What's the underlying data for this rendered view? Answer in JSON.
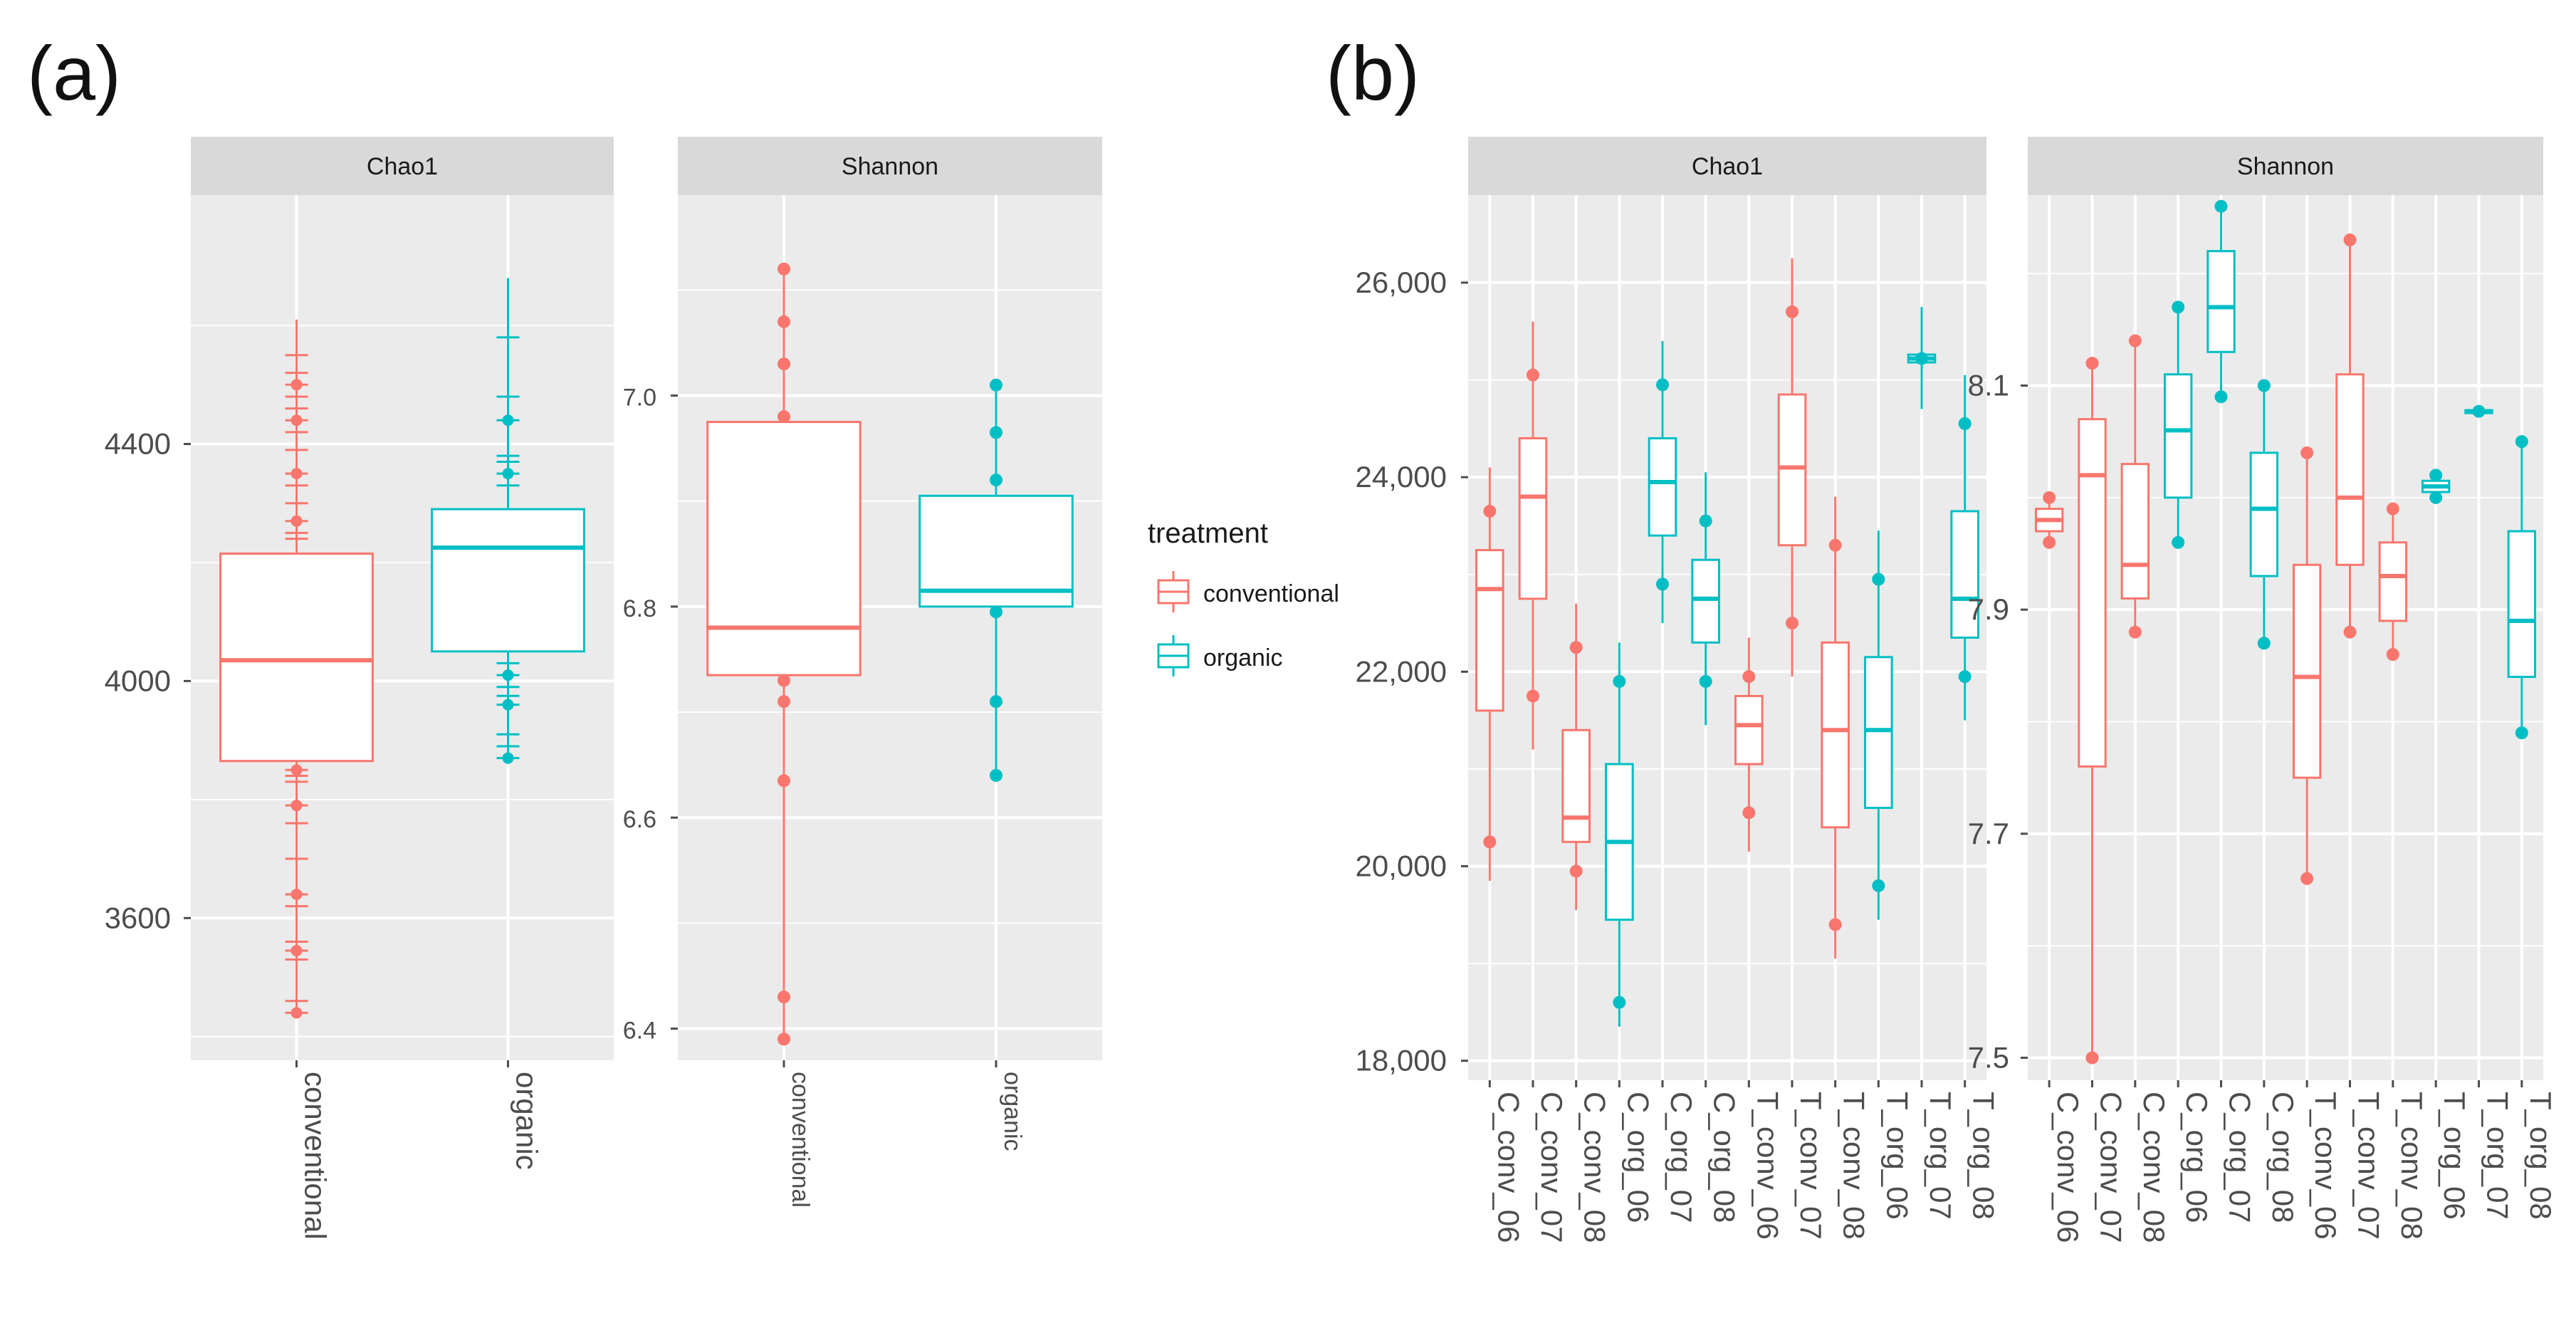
{
  "colors": {
    "conventional": "#f8766d",
    "organic": "#00bfc4",
    "panel_bg": "#ebebeb",
    "strip_bg": "#d9d9d9",
    "grid": "#ffffff"
  },
  "legend": {
    "title": "treatment",
    "items": [
      "conventional",
      "organic"
    ]
  },
  "chart_data": [
    {
      "panel": "(a)",
      "facet": "Chao1",
      "type": "boxplot",
      "categories": [
        "conventional",
        "organic"
      ],
      "ylim": [
        3360,
        4820
      ],
      "yticks": [
        3600,
        4000,
        4400
      ],
      "ytick_labels": [
        "3600",
        "4000",
        "4400"
      ],
      "boxes": [
        {
          "label": "conventional",
          "group": "conventional",
          "min": 3440,
          "q1": 3865,
          "median": 4035,
          "q3": 4215,
          "max": 4610,
          "points": [
            3440,
            3460,
            3530,
            3545,
            3560,
            3620,
            3640,
            3700,
            3760,
            3790,
            3830,
            3840,
            3850,
            4240,
            4250,
            4270,
            4300,
            4330,
            4350,
            4390,
            4420,
            4440,
            4460,
            4480,
            4500,
            4520,
            4550
          ]
        },
        {
          "label": "organic",
          "group": "organic",
          "min": 3860,
          "q1": 4050,
          "median": 4225,
          "q3": 4290,
          "max": 4680,
          "points": [
            3870,
            3890,
            3910,
            3960,
            3975,
            3990,
            4010,
            4030,
            4330,
            4350,
            4370,
            4380,
            4440,
            4480,
            4580
          ]
        }
      ]
    },
    {
      "panel": "(a)",
      "facet": "Shannon",
      "type": "boxplot",
      "categories": [
        "conventional",
        "organic"
      ],
      "ylim": [
        6.37,
        7.19
      ],
      "yticks": [
        6.4,
        6.6,
        6.8,
        7.0
      ],
      "ytick_labels": [
        "6.4",
        "6.6",
        "6.8",
        "7.0"
      ],
      "boxes": [
        {
          "label": "conventional",
          "group": "conventional",
          "min": 6.39,
          "q1": 6.735,
          "median": 6.78,
          "q3": 6.975,
          "max": 7.12,
          "points": [
            6.39,
            6.43,
            6.635,
            6.71,
            6.73,
            6.98,
            7.03,
            7.07,
            7.12
          ]
        },
        {
          "label": "organic",
          "group": "organic",
          "min": 6.64,
          "q1": 6.8,
          "median": 6.815,
          "q3": 6.905,
          "max": 7.01,
          "points": [
            6.64,
            6.71,
            6.795,
            6.92,
            6.965,
            7.01
          ]
        }
      ]
    },
    {
      "panel": "(b)",
      "facet": "Chao1",
      "type": "boxplot",
      "categories": [
        "C_conv_06",
        "C_conv_07",
        "C_conv_08",
        "C_org_06",
        "C_org_07",
        "C_org_08",
        "T_conv_06",
        "T_conv_07",
        "T_conv_08",
        "T_org_06",
        "T_org_07",
        "T_org_08"
      ],
      "ylim": [
        17800,
        26900
      ],
      "yticks": [
        18000,
        20000,
        22000,
        24000,
        26000
      ],
      "ytick_labels": [
        "18,000",
        "20,000",
        "22,000",
        "24,000",
        "26,000"
      ],
      "boxes": [
        {
          "label": "C_conv_06",
          "group": "conventional",
          "min": 19850,
          "q1": 21600,
          "median": 22850,
          "q3": 23250,
          "max": 24100,
          "points": [
            20250,
            23650
          ]
        },
        {
          "label": "C_conv_07",
          "group": "conventional",
          "min": 21200,
          "q1": 22750,
          "median": 23800,
          "q3": 24400,
          "max": 25600,
          "points": [
            21750,
            25050
          ]
        },
        {
          "label": "C_conv_08",
          "group": "conventional",
          "min": 19550,
          "q1": 20250,
          "median": 20500,
          "q3": 21400,
          "max": 22700,
          "points": [
            19950,
            22250
          ]
        },
        {
          "label": "C_org_06",
          "group": "organic",
          "min": 18350,
          "q1": 19450,
          "median": 20250,
          "q3": 21050,
          "max": 22300,
          "points": [
            18600,
            21900
          ]
        },
        {
          "label": "C_org_07",
          "group": "organic",
          "min": 22500,
          "q1": 23400,
          "median": 23950,
          "q3": 24400,
          "max": 25400,
          "points": [
            22900,
            24950
          ]
        },
        {
          "label": "C_org_08",
          "group": "organic",
          "min": 21450,
          "q1": 22300,
          "median": 22750,
          "q3": 23150,
          "max": 24050,
          "points": [
            21900,
            23550
          ]
        },
        {
          "label": "T_conv_06",
          "group": "conventional",
          "min": 20150,
          "q1": 21050,
          "median": 21450,
          "q3": 21750,
          "max": 22350,
          "points": [
            20550,
            21950
          ]
        },
        {
          "label": "T_conv_07",
          "group": "conventional",
          "min": 21950,
          "q1": 23300,
          "median": 24100,
          "q3": 24850,
          "max": 26250,
          "points": [
            22500,
            25700
          ]
        },
        {
          "label": "T_conv_08",
          "group": "conventional",
          "min": 19050,
          "q1": 20400,
          "median": 21400,
          "q3": 22300,
          "max": 23800,
          "points": [
            19400,
            23300
          ]
        },
        {
          "label": "T_org_06",
          "group": "organic",
          "min": 19450,
          "q1": 20600,
          "median": 21400,
          "q3": 22150,
          "max": 23450,
          "points": [
            19800,
            22950
          ]
        },
        {
          "label": "T_org_07",
          "group": "organic",
          "min": 24700,
          "q1": 25180,
          "median": 25220,
          "q3": 25260,
          "max": 25750,
          "points": [
            25220
          ]
        },
        {
          "label": "T_org_08",
          "group": "organic",
          "min": 21500,
          "q1": 22350,
          "median": 22750,
          "q3": 23650,
          "max": 25050,
          "points": [
            21950,
            24550
          ]
        }
      ]
    },
    {
      "panel": "(b)",
      "facet": "Shannon",
      "type": "boxplot",
      "categories": [
        "C_conv_06",
        "C_conv_07",
        "C_conv_08",
        "C_org_06",
        "C_org_07",
        "C_org_08",
        "T_conv_06",
        "T_conv_07",
        "T_conv_08",
        "T_org_06",
        "T_org_07",
        "T_org_08"
      ],
      "ylim": [
        7.48,
        8.27
      ],
      "yticks": [
        7.5,
        7.7,
        7.9,
        8.1
      ],
      "ytick_labels": [
        "7.5",
        "7.7",
        "7.9",
        "8.1"
      ],
      "boxes": [
        {
          "label": "C_conv_06",
          "group": "conventional",
          "min": 7.96,
          "q1": 7.97,
          "median": 7.98,
          "q3": 7.99,
          "max": 8.0,
          "points": [
            7.96,
            8.0
          ]
        },
        {
          "label": "C_conv_07",
          "group": "conventional",
          "min": 7.5,
          "q1": 7.76,
          "median": 8.02,
          "q3": 8.07,
          "max": 8.12,
          "points": [
            7.5,
            8.12
          ]
        },
        {
          "label": "C_conv_08",
          "group": "conventional",
          "min": 7.88,
          "q1": 7.91,
          "median": 7.94,
          "q3": 8.03,
          "max": 8.14,
          "points": [
            7.88,
            8.14
          ]
        },
        {
          "label": "C_org_06",
          "group": "organic",
          "min": 7.96,
          "q1": 8.0,
          "median": 8.06,
          "q3": 8.11,
          "max": 8.17,
          "points": [
            7.96,
            8.17
          ]
        },
        {
          "label": "C_org_07",
          "group": "organic",
          "min": 8.09,
          "q1": 8.13,
          "median": 8.17,
          "q3": 8.22,
          "max": 8.26,
          "points": [
            8.09,
            8.26
          ]
        },
        {
          "label": "C_org_08",
          "group": "organic",
          "min": 7.87,
          "q1": 7.93,
          "median": 7.99,
          "q3": 8.04,
          "max": 8.1,
          "points": [
            7.87,
            8.1
          ]
        },
        {
          "label": "T_conv_06",
          "group": "conventional",
          "min": 7.66,
          "q1": 7.75,
          "median": 7.84,
          "q3": 7.94,
          "max": 8.04,
          "points": [
            7.66,
            8.04
          ]
        },
        {
          "label": "T_conv_07",
          "group": "conventional",
          "min": 7.88,
          "q1": 7.94,
          "median": 8.0,
          "q3": 8.11,
          "max": 8.23,
          "points": [
            7.88,
            8.23
          ]
        },
        {
          "label": "T_conv_08",
          "group": "conventional",
          "min": 7.86,
          "q1": 7.89,
          "median": 7.93,
          "q3": 7.96,
          "max": 7.99,
          "points": [
            7.86,
            7.99
          ]
        },
        {
          "label": "T_org_06",
          "group": "organic",
          "min": 8.0,
          "q1": 8.005,
          "median": 8.01,
          "q3": 8.015,
          "max": 8.02,
          "points": [
            8.0,
            8.02
          ]
        },
        {
          "label": "T_org_07",
          "group": "organic",
          "min": 8.074,
          "q1": 8.076,
          "median": 8.077,
          "q3": 8.078,
          "max": 8.08,
          "points": [
            8.077
          ]
        },
        {
          "label": "T_org_08",
          "group": "organic",
          "min": 7.79,
          "q1": 7.84,
          "median": 7.89,
          "q3": 7.97,
          "max": 8.05,
          "points": [
            7.79,
            8.05
          ]
        }
      ]
    }
  ]
}
